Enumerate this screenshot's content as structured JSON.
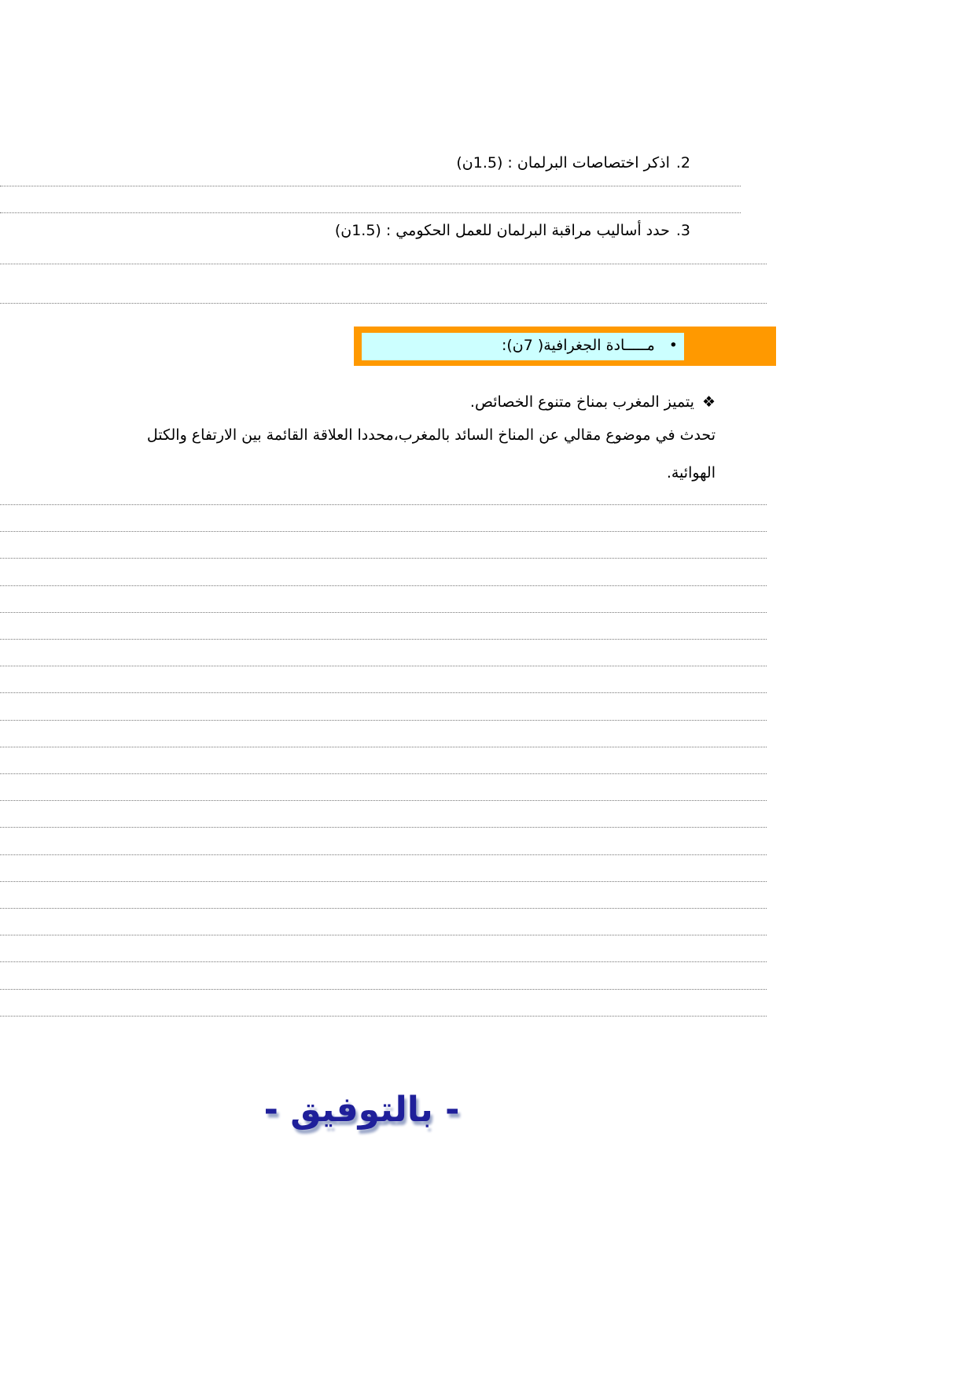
{
  "questions": [
    {
      "number": "2.",
      "text": "اذكر اختصاصات البرلمان : (1.5ن)"
    },
    {
      "number": "3.",
      "text": "حدد أساليب مراقبة البرلمان للعمل الحكومي : (1.5ن)"
    }
  ],
  "section": {
    "bullet": "•",
    "title": "مـــــادة الجغرافية( 7ن):"
  },
  "prompt": {
    "bullet": "❖",
    "text": "يتميز المغرب بمناخ متنوع الخصائص."
  },
  "instruction": [
    "تحدث في موضوع مقالي عن المناخ السائد بالمغرب،محددا العلاقة القائمة بين الارتفاع والكتل",
    "الهوائية."
  ],
  "footer": "- بالتوفيق -"
}
